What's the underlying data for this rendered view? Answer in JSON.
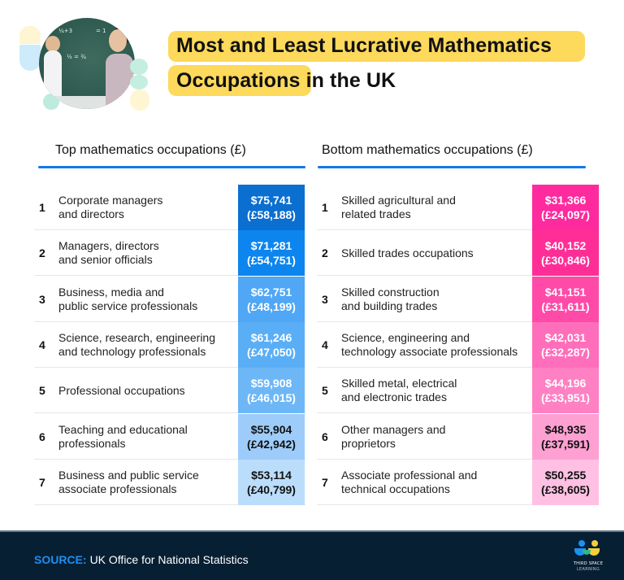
{
  "title": {
    "line1": "Most and Least Lucrative Mathematics",
    "line2_highlight": "Occupations",
    "line2_rest": " in the UK",
    "highlight_color": "#FDD95C"
  },
  "hero_image": {
    "description": "teacher-and-student-at-chalkboard",
    "chalk": [
      "¼+3",
      "= 1",
      "½ = ¾"
    ]
  },
  "top_table": {
    "heading": "Top mathematics occupations (£)",
    "rule_color": "#1479E3",
    "rows": [
      {
        "rank": "1",
        "label": "Corporate managers\nand directors",
        "usd": "$75,741",
        "gbp": "(£58,188)",
        "bg": "#0A6FD0",
        "fg": "#ffffff"
      },
      {
        "rank": "2",
        "label": "Managers, directors\nand senior officials",
        "usd": "$71,281",
        "gbp": "(£54,751)",
        "bg": "#0D85EE",
        "fg": "#ffffff"
      },
      {
        "rank": "3",
        "label": "Business, media and\npublic service professionals",
        "usd": "$62,751",
        "gbp": "(£48,199)",
        "bg": "#4FA7F5",
        "fg": "#ffffff"
      },
      {
        "rank": "4",
        "label": "Science, research, engineering\nand technology professionals",
        "usd": "$61,246",
        "gbp": "(£47,050)",
        "bg": "#5AAEF6",
        "fg": "#ffffff"
      },
      {
        "rank": "5",
        "label": "Professional occupations",
        "usd": "$59,908",
        "gbp": "(£46,015)",
        "bg": "#6DB7F7",
        "fg": "#ffffff"
      },
      {
        "rank": "6",
        "label": "Teaching and educational\nprofessionals",
        "usd": "$55,904",
        "gbp": "(£42,942)",
        "bg": "#9DCCFA",
        "fg": "#111111"
      },
      {
        "rank": "7",
        "label": "Business and public service\nassociate professionals",
        "usd": "$53,114",
        "gbp": "(£40,799)",
        "bg": "#BBDDFC",
        "fg": "#111111"
      }
    ]
  },
  "bottom_table": {
    "heading": "Bottom mathematics occupations (£)",
    "rule_color": "#1479E3",
    "rows": [
      {
        "rank": "1",
        "label": "Skilled agricultural and\nrelated trades",
        "usd": "$31,366",
        "gbp": "(£24,097)",
        "bg": "#FF2A9E",
        "fg": "#ffffff"
      },
      {
        "rank": "2",
        "label": "Skilled trades occupations",
        "usd": "$40,152",
        "gbp": "(£30,846)",
        "bg": "#FF2E96",
        "fg": "#ffffff"
      },
      {
        "rank": "3",
        "label": "Skilled construction\nand building trades",
        "usd": "$41,151",
        "gbp": "(£31,611)",
        "bg": "#FF4AA8",
        "fg": "#ffffff"
      },
      {
        "rank": "4",
        "label": "Science, engineering and\ntechnology associate professionals",
        "usd": "$42,031",
        "gbp": "(£32,287)",
        "bg": "#FF6EBA",
        "fg": "#ffffff"
      },
      {
        "rank": "5",
        "label": "Skilled metal, electrical\nand electronic trades",
        "usd": "$44,196",
        "gbp": "(£33,951)",
        "bg": "#FF80C3",
        "fg": "#ffffff"
      },
      {
        "rank": "6",
        "label": "Other managers and\nproprietors",
        "usd": "$48,935",
        "gbp": "(£37,591)",
        "bg": "#FFA0D3",
        "fg": "#111111"
      },
      {
        "rank": "7",
        "label": "Associate professional and\ntechnical occupations",
        "usd": "$50,255",
        "gbp": "(£38,605)",
        "bg": "#FFC0E3",
        "fg": "#111111"
      }
    ]
  },
  "footer": {
    "source_label": "SOURCE:",
    "source_text": "UK Office for National Statistics",
    "background": "#071F33",
    "logo_line1": "THIRD SPACE",
    "logo_line2": "LEARNING"
  }
}
